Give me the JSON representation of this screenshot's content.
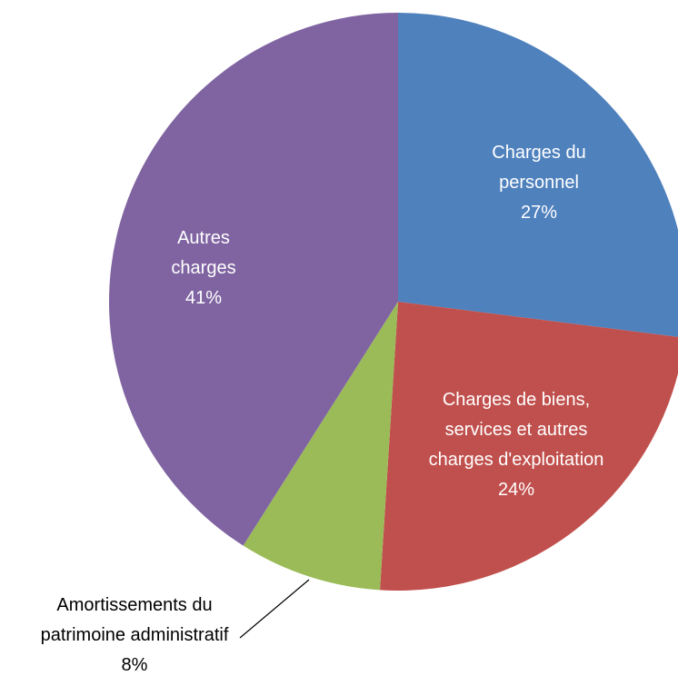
{
  "chart_data": {
    "type": "pie",
    "title": "",
    "slices": [
      {
        "label_lines": [
          "Charges du",
          "personnel"
        ],
        "percent_label": "27%",
        "value": 27,
        "color": "#4F81BD",
        "label_color": "#FFFFFF"
      },
      {
        "label_lines": [
          "Charges de biens,",
          "services et autres",
          "charges d'exploitation"
        ],
        "percent_label": "24%",
        "value": 24,
        "color": "#C0504D",
        "label_color": "#FFFFFF"
      },
      {
        "label_lines": [
          "Amortissements du",
          "patrimoine administratif"
        ],
        "percent_label": "8%",
        "value": 8,
        "color": "#9BBB59",
        "label_color": "#000000"
      },
      {
        "label_lines": [
          "Autres",
          "charges"
        ],
        "percent_label": "41%",
        "value": 41,
        "color": "#8064A2",
        "label_color": "#FFFFFF"
      }
    ],
    "start_angle_deg": 0,
    "direction": "clockwise",
    "legend": "none",
    "label_placement": "inside, except small slice outside with leader line"
  }
}
